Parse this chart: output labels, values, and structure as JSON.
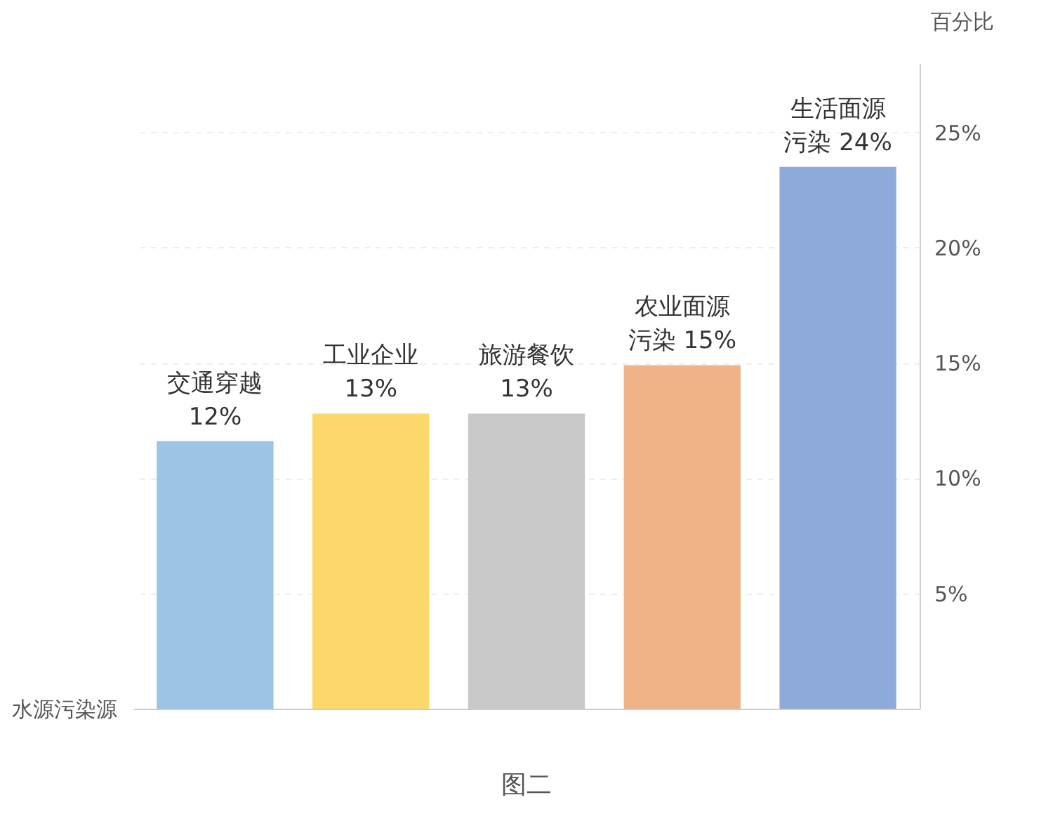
{
  "chart_data": {
    "type": "bar",
    "title": "图二",
    "xlabel": "水源污染源",
    "ylabel": "百分比",
    "categories": [
      "交通穿越",
      "工业企业",
      "旅游餐饮",
      "农业面源污染",
      "生活面源污染"
    ],
    "values": [
      11.6,
      12.8,
      12.8,
      14.9,
      23.5
    ],
    "value_labels": [
      "12%",
      "13%",
      "13%",
      "15%",
      "24%"
    ],
    "colors": [
      "#9dc3e6",
      "#fcd86b",
      "#c8c8c8",
      "#f0b286",
      "#8eaadb"
    ],
    "ylim": [
      0,
      28
    ],
    "yticks": [
      {
        "value": 5,
        "label": "5%"
      },
      {
        "value": 10,
        "label": "10%"
      },
      {
        "value": 15,
        "label": "15%"
      },
      {
        "value": 20,
        "label": "20%"
      },
      {
        "value": 25,
        "label": "25%"
      }
    ],
    "grid": "y"
  }
}
